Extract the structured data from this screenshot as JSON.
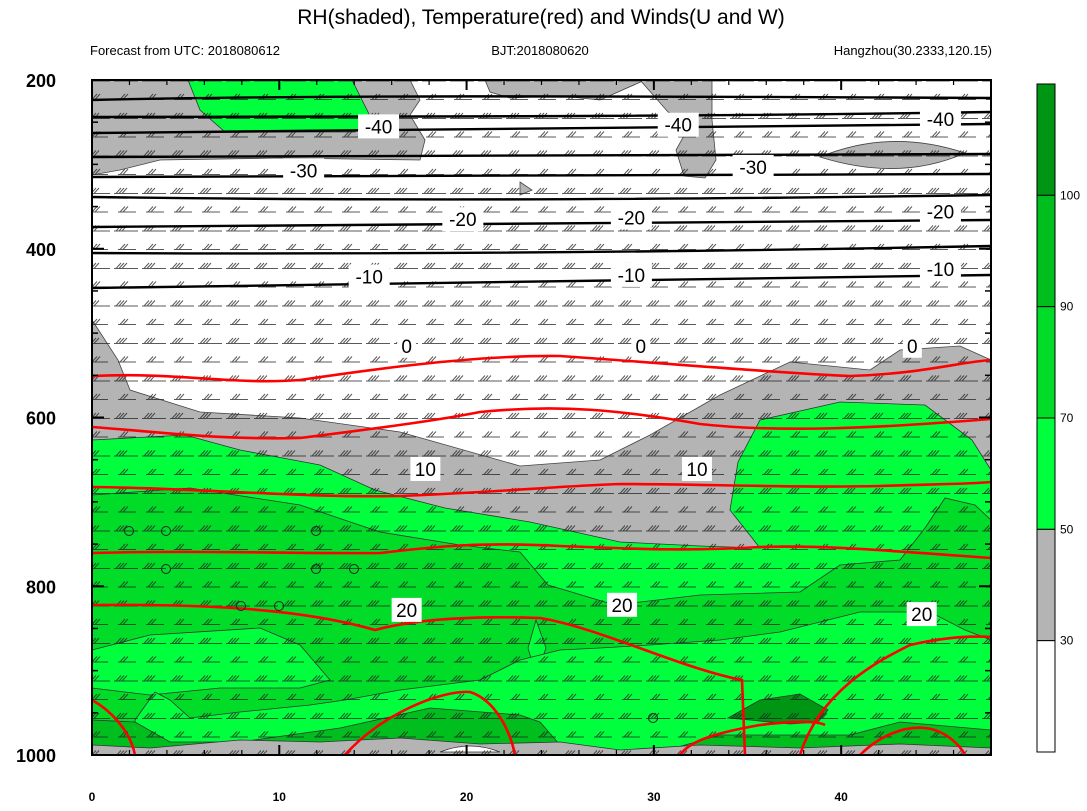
{
  "chart_data": {
    "type": "cross-section",
    "title": "RH(shaded), Temperature(red) and Winds(U and W)",
    "subtitle_left": "Forecast from UTC: 2018080612",
    "subtitle_center": "BJT:2018080620",
    "subtitle_right": "Hangzhou(30.2333,120.15)",
    "x_ticks": [
      "0",
      "10",
      "20",
      "30",
      "40"
    ],
    "x_range": [
      0,
      48
    ],
    "y_ticks": [
      "200",
      "400",
      "600",
      "800",
      "1000"
    ],
    "y_range": [
      200,
      1000
    ],
    "colorbar": {
      "labels": [
        "30",
        "50",
        "70",
        "90",
        "100"
      ],
      "colors": [
        "#ffffff",
        "#b4b4b4",
        "#00ff3c",
        "#00dc28",
        "#00be1e",
        "#009614"
      ]
    },
    "colors": {
      "rh_grey": "#b4b4b4",
      "rh_light": "#00ff3c",
      "rh_mid": "#00dc28",
      "rh_dark": "#00be1e",
      "rh_darkest": "#009614",
      "temp_line": "#ff0000",
      "upper_line": "#000000"
    },
    "temperature_labels": [
      "-40",
      "-30",
      "-20",
      "-10",
      "0",
      "10",
      "20"
    ],
    "contour_labels": [
      {
        "text": "-40",
        "x": 15.3,
        "p": 255
      },
      {
        "text": "-40",
        "x": 31.3,
        "p": 253
      },
      {
        "text": "-40",
        "x": 45.3,
        "p": 246
      },
      {
        "text": "-30",
        "x": 11.3,
        "p": 307
      },
      {
        "text": "-30",
        "x": 35.3,
        "p": 303
      },
      {
        "text": "-20",
        "x": 19.8,
        "p": 365
      },
      {
        "text": "-20",
        "x": 28.8,
        "p": 363
      },
      {
        "text": "-20",
        "x": 45.3,
        "p": 356
      },
      {
        "text": "-10",
        "x": 14.8,
        "p": 433
      },
      {
        "text": "-10",
        "x": 28.8,
        "p": 431
      },
      {
        "text": "-10",
        "x": 45.3,
        "p": 424
      },
      {
        "text": "0",
        "x": 16.8,
        "p": 515
      },
      {
        "text": "0",
        "x": 29.3,
        "p": 515
      },
      {
        "text": "0",
        "x": 43.8,
        "p": 515
      },
      {
        "text": "10",
        "x": 17.8,
        "p": 661
      },
      {
        "text": "10",
        "x": 32.3,
        "p": 661
      },
      {
        "text": "20",
        "x": 16.8,
        "p": 828
      },
      {
        "text": "20",
        "x": 28.3,
        "p": 822
      },
      {
        "text": "20",
        "x": 44.3,
        "p": 833
      }
    ]
  }
}
